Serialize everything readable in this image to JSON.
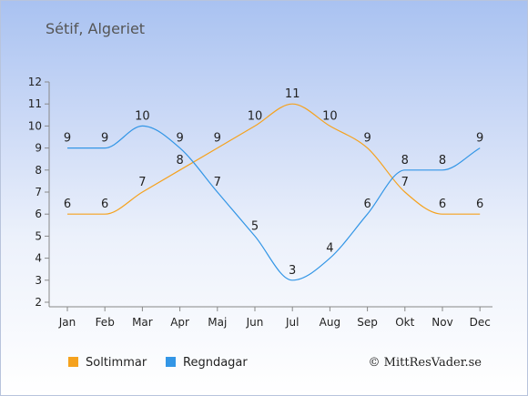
{
  "title": "Sétif, Algeriet",
  "copyright": "© MittResVader.se",
  "chart_data": {
    "type": "line",
    "categories": [
      "Jan",
      "Feb",
      "Mar",
      "Apr",
      "Maj",
      "Jun",
      "Jul",
      "Aug",
      "Sep",
      "Okt",
      "Nov",
      "Dec"
    ],
    "ylim": [
      2,
      12
    ],
    "yticks": [
      2,
      3,
      4,
      5,
      6,
      7,
      8,
      9,
      10,
      11,
      12
    ],
    "grid": false,
    "legend_position": "bottom",
    "series": [
      {
        "name": "Soltimmar",
        "color": "#f5a21e",
        "values": [
          6,
          6,
          7,
          8,
          9,
          10,
          11,
          10,
          9,
          7,
          6,
          6
        ]
      },
      {
        "name": "Regndagar",
        "color": "#3396e6",
        "values": [
          9,
          9,
          10,
          9,
          7,
          5,
          3,
          4,
          6,
          8,
          8,
          9
        ]
      }
    ]
  }
}
